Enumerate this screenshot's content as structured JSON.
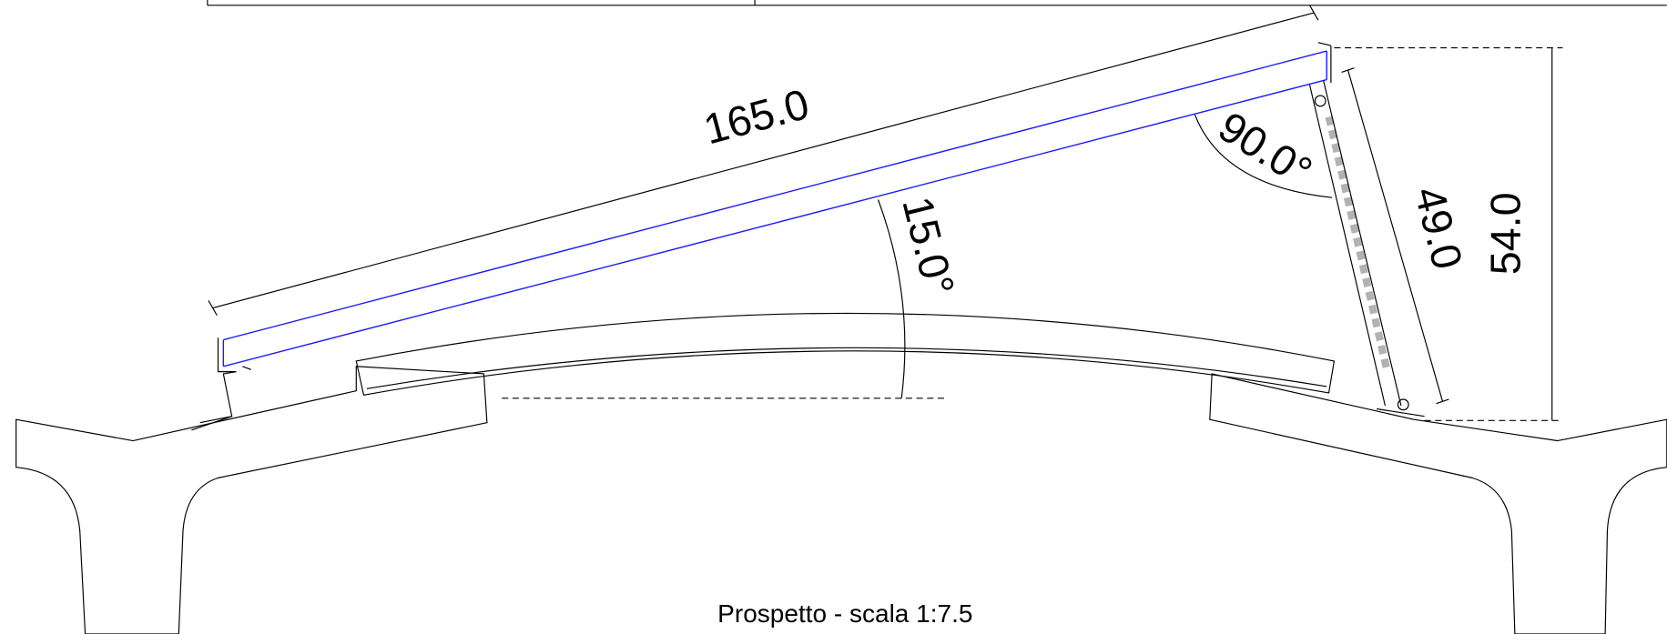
{
  "drawing": {
    "dimensions": [
      {
        "label": "165.0"
      },
      {
        "label": "90.0°"
      },
      {
        "label": "15.0°"
      },
      {
        "label": "49.0"
      },
      {
        "label": "54.0"
      }
    ],
    "caption": "Prospetto - scala 1:7.5"
  }
}
